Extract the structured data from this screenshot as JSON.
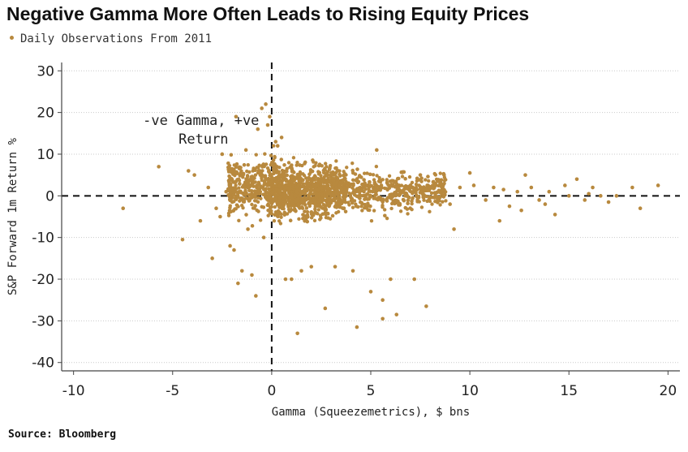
{
  "chart_data": {
    "type": "scatter",
    "title": "Negative Gamma More Often Leads to Rising Equity Prices",
    "legend": {
      "label": "Daily Observations From 2011",
      "placement": "top-left"
    },
    "xlabel": "Gamma (Squeezemetrics), $ bns",
    "ylabel": "S&P Forward 1m Return %",
    "xlim": [
      -10.6,
      20.6
    ],
    "ylim": [
      -42,
      32
    ],
    "xticks": [
      -10,
      -5,
      0,
      5,
      10,
      15,
      20
    ],
    "yticks": [
      -40,
      -30,
      -20,
      -10,
      0,
      10,
      20,
      30
    ],
    "grid": {
      "horizontal": true,
      "vertical": false
    },
    "reference_lines": {
      "x": 0,
      "y": 0,
      "style": "dashed"
    },
    "annotation": {
      "lines": [
        "-ve Gamma, +ve",
        "Return"
      ],
      "x": -6.5,
      "y": 17
    },
    "point_color": "#b8893e",
    "series": [
      {
        "name": "Daily Observations From 2011",
        "points": [
          [
            -7.5,
            -3
          ],
          [
            -5.7,
            7
          ],
          [
            -4.5,
            -10.5
          ],
          [
            -4.2,
            6
          ],
          [
            -3.9,
            5
          ],
          [
            -3.6,
            -6
          ],
          [
            -3.2,
            2
          ],
          [
            -3.0,
            -15
          ],
          [
            -2.8,
            -3
          ],
          [
            -2.6,
            -5
          ],
          [
            -2.5,
            10
          ],
          [
            -2.3,
            1
          ],
          [
            -2.1,
            -12
          ],
          [
            -1.9,
            -13
          ],
          [
            -1.8,
            19
          ],
          [
            -1.7,
            -21
          ],
          [
            -1.5,
            -18
          ],
          [
            -1.3,
            11
          ],
          [
            -1.2,
            -8
          ],
          [
            -1.0,
            -19
          ],
          [
            -0.8,
            -24
          ],
          [
            -0.7,
            16
          ],
          [
            -0.5,
            21
          ],
          [
            -0.4,
            -10
          ],
          [
            -0.3,
            22
          ],
          [
            -0.2,
            17
          ],
          [
            -0.1,
            19
          ],
          [
            0.2,
            13
          ],
          [
            0.3,
            12
          ],
          [
            0.5,
            14
          ],
          [
            0.7,
            -20
          ],
          [
            1.0,
            -20
          ],
          [
            1.3,
            -33
          ],
          [
            1.5,
            -18
          ],
          [
            2.0,
            -17
          ],
          [
            2.7,
            -27
          ],
          [
            3.2,
            -17
          ],
          [
            4.1,
            -18
          ],
          [
            4.3,
            -31.5
          ],
          [
            5.0,
            -23
          ],
          [
            5.6,
            -25
          ],
          [
            5.6,
            -29.5
          ],
          [
            6.0,
            -20
          ],
          [
            6.3,
            -28.5
          ],
          [
            7.2,
            -20
          ],
          [
            7.8,
            -26.5
          ],
          [
            5.3,
            11
          ],
          [
            8.5,
            3
          ],
          [
            9.0,
            -2
          ],
          [
            9.5,
            2
          ],
          [
            10.2,
            2.5
          ],
          [
            10.8,
            -1
          ],
          [
            11.2,
            2
          ],
          [
            11.5,
            -6
          ],
          [
            12.0,
            -2.5
          ],
          [
            12.4,
            1
          ],
          [
            12.8,
            5
          ],
          [
            13.1,
            2
          ],
          [
            13.5,
            -1
          ],
          [
            14.0,
            1
          ],
          [
            14.3,
            -4.5
          ],
          [
            14.8,
            2.5
          ],
          [
            15.0,
            0
          ],
          [
            15.4,
            4
          ],
          [
            15.8,
            -1
          ],
          [
            16.2,
            2
          ],
          [
            16.6,
            0
          ],
          [
            17.0,
            -1.5
          ],
          [
            17.4,
            0
          ],
          [
            18.2,
            2
          ],
          [
            18.6,
            -3
          ],
          [
            19.5,
            2.5
          ],
          [
            10.0,
            5.5
          ],
          [
            11.7,
            1.5
          ],
          [
            13.8,
            -2
          ],
          [
            16.0,
            0.5
          ],
          [
            12.6,
            -3.5
          ],
          [
            9.2,
            -8
          ],
          [
            8.7,
            5
          ],
          [
            7.5,
            5
          ]
        ]
      }
    ]
  },
  "source": "Source: Bloomberg"
}
